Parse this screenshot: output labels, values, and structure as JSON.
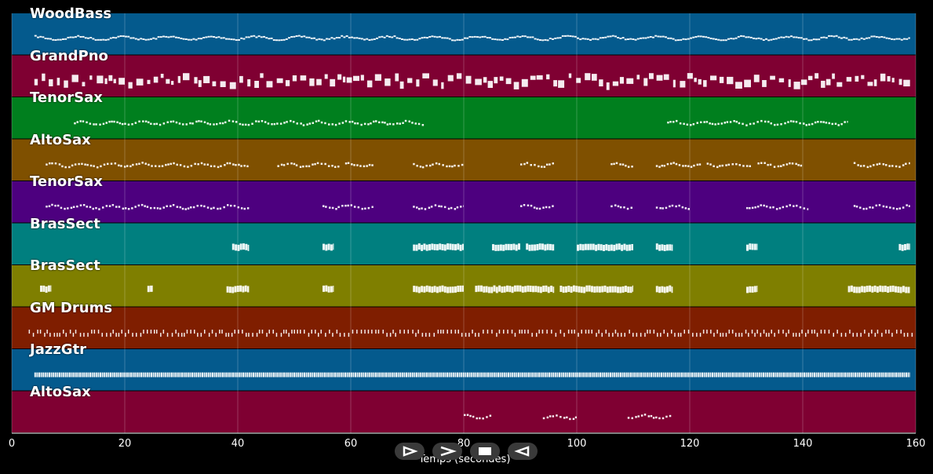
{
  "chart_data": {
    "type": "piano-roll",
    "xlabel": "Temps (secondes)",
    "xlim": [
      0,
      160
    ],
    "x_ticks": [
      0,
      20,
      40,
      60,
      80,
      100,
      120,
      140,
      160
    ],
    "tracks": [
      {
        "name": "WoodBass",
        "color": "#045a8d",
        "pattern": "continuous-line",
        "active": [
          [
            4,
            159
          ]
        ]
      },
      {
        "name": "GrandPno",
        "color": "#7f0032",
        "pattern": "blocks",
        "active": [
          [
            4,
            159
          ]
        ]
      },
      {
        "name": "TenorSax",
        "color": "#007f1e",
        "pattern": "phrases",
        "active": [
          [
            11,
            73
          ],
          [
            116,
            148
          ]
        ]
      },
      {
        "name": "AltoSax",
        "color": "#7f5000",
        "pattern": "phrases",
        "active": [
          [
            6,
            42
          ],
          [
            47,
            58
          ],
          [
            59,
            64
          ],
          [
            71,
            80
          ],
          [
            90,
            96
          ],
          [
            106,
            110
          ],
          [
            114,
            122
          ],
          [
            123,
            131
          ],
          [
            132,
            140
          ],
          [
            149,
            159
          ]
        ]
      },
      {
        "name": "TenorSax",
        "color": "#4d007f",
        "pattern": "phrases",
        "active": [
          [
            6,
            42
          ],
          [
            55,
            64
          ],
          [
            71,
            80
          ],
          [
            90,
            96
          ],
          [
            106,
            110
          ],
          [
            114,
            120
          ],
          [
            130,
            141
          ],
          [
            149,
            159
          ]
        ]
      },
      {
        "name": "BrasSect",
        "color": "#007f7f",
        "pattern": "stabs",
        "active": [
          [
            39,
            42
          ],
          [
            55,
            57
          ],
          [
            71,
            80
          ],
          [
            85,
            90
          ],
          [
            91,
            96
          ],
          [
            100,
            110
          ],
          [
            114,
            117
          ],
          [
            130,
            132
          ],
          [
            157,
            159
          ]
        ]
      },
      {
        "name": "BrasSect",
        "color": "#7f7f00",
        "pattern": "stabs",
        "active": [
          [
            5,
            7
          ],
          [
            24,
            25
          ],
          [
            38,
            42
          ],
          [
            55,
            57
          ],
          [
            71,
            80
          ],
          [
            82,
            96
          ],
          [
            97,
            110
          ],
          [
            114,
            117
          ],
          [
            130,
            132
          ],
          [
            148,
            159
          ]
        ]
      },
      {
        "name": "GM Drums",
        "color": "#7f1e00",
        "pattern": "hits",
        "active": [
          [
            3,
            160
          ]
        ]
      },
      {
        "name": "JazzGtr",
        "color": "#045a8d",
        "pattern": "dense",
        "active": [
          [
            4,
            159
          ]
        ]
      },
      {
        "name": "AltoSax",
        "color": "#7f0032",
        "pattern": "phrases",
        "active": [
          [
            80,
            85
          ],
          [
            94,
            100
          ],
          [
            109,
            117
          ]
        ]
      }
    ]
  },
  "controls": [
    {
      "name": "play-button",
      "icon": "play-icon"
    },
    {
      "name": "forward-button",
      "icon": "forward-icon"
    },
    {
      "name": "stop-button",
      "icon": "stop-icon"
    },
    {
      "name": "rewind-button",
      "icon": "rewind-icon"
    }
  ]
}
